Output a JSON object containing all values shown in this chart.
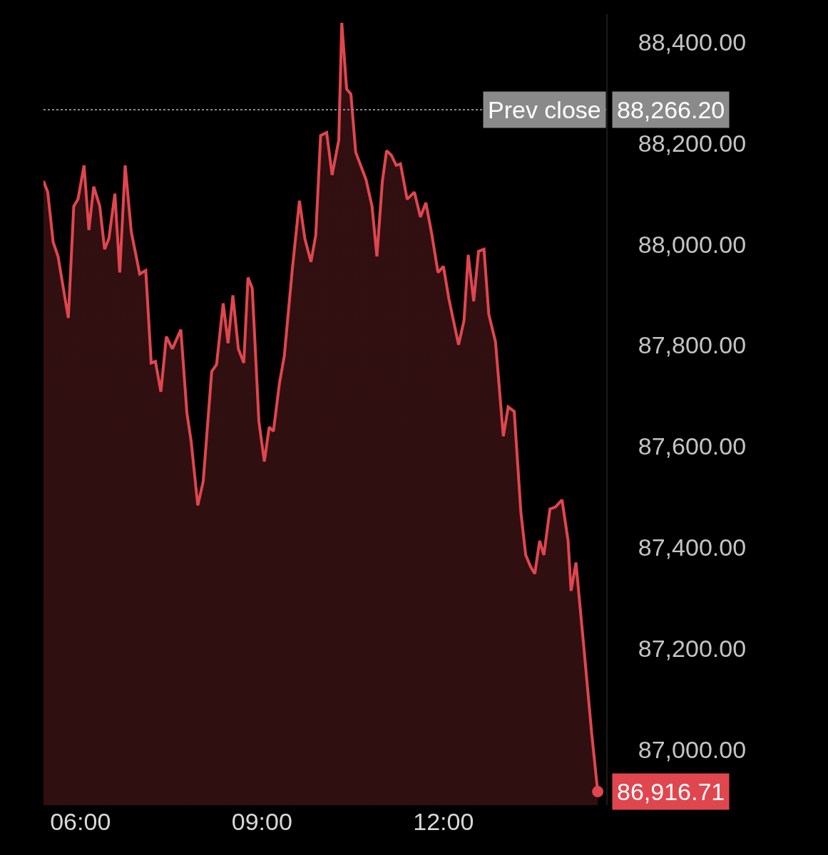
{
  "chart_data": {
    "type": "area",
    "x": [
      5.39,
      5.46,
      5.55,
      5.63,
      5.8,
      5.89,
      5.96,
      6.06,
      6.14,
      6.22,
      6.32,
      6.4,
      6.47,
      6.57,
      6.65,
      6.74,
      6.84,
      6.98,
      7.08,
      7.17,
      7.24,
      7.33,
      7.42,
      7.52,
      7.66,
      7.76,
      7.83,
      7.94,
      8.03,
      8.17,
      8.25,
      8.36,
      8.44,
      8.52,
      8.61,
      8.7,
      8.77,
      8.84,
      8.95,
      9.04,
      9.12,
      9.19,
      9.29,
      9.37,
      9.5,
      9.62,
      9.71,
      9.81,
      9.89,
      9.97,
      10.07,
      10.16,
      10.27,
      10.32,
      10.4,
      10.47,
      10.55,
      10.72,
      10.82,
      10.9,
      10.99,
      11.06,
      11.14,
      11.22,
      11.29,
      11.4,
      11.52,
      11.62,
      11.71,
      11.81,
      11.91,
      12.0,
      12.09,
      12.25,
      12.34,
      12.41,
      12.5,
      12.58,
      12.67,
      12.75,
      12.86,
      12.99,
      13.07,
      13.17,
      13.28,
      13.36,
      13.44,
      13.51,
      13.59,
      13.66,
      13.76,
      13.85,
      13.96,
      14.06,
      14.11,
      14.19,
      14.31,
      14.45,
      14.55
    ],
    "series": [
      {
        "color": "#e0464e",
        "values": [
          88125,
          88103,
          88004,
          87976,
          87854,
          88075,
          88089,
          88156,
          88028,
          88114,
          88075,
          87990,
          88011,
          88100,
          87944,
          88156,
          88025,
          87941,
          87948,
          87765,
          87768,
          87708,
          87817,
          87793,
          87831,
          87666,
          87610,
          87483,
          87531,
          87748,
          87762,
          87883,
          87804,
          87899,
          87793,
          87765,
          87934,
          87913,
          87649,
          87570,
          87638,
          87630,
          87725,
          87779,
          87948,
          88086,
          88011,
          87965,
          88018,
          88215,
          88221,
          88137,
          88206,
          88438,
          88307,
          88297,
          88182,
          88128,
          88075,
          87976,
          88124,
          88185,
          88176,
          88156,
          88159,
          88089,
          88103,
          88054,
          88082,
          88018,
          87944,
          87956,
          87892,
          87801,
          87849,
          87979,
          87887,
          87986,
          87990,
          87861,
          87807,
          87620,
          87678,
          87669,
          87469,
          87385,
          87362,
          87348,
          87413,
          87385,
          87476,
          87480,
          87494,
          87413,
          87314,
          87370,
          87216,
          87032,
          86916.71
        ]
      }
    ],
    "xlim": [
      5.39,
      14.69
    ],
    "ylim": [
      86890,
      88455
    ],
    "xticks": [
      {
        "value": 6,
        "label": "06:00"
      },
      {
        "value": 9,
        "label": "09:00"
      },
      {
        "value": 12,
        "label": "12:00"
      }
    ],
    "yticks": [
      {
        "value": 87000,
        "label": "87,000.00"
      },
      {
        "value": 87200,
        "label": "87,200.00"
      },
      {
        "value": 87400,
        "label": "87,400.00"
      },
      {
        "value": 87600,
        "label": "87,600.00"
      },
      {
        "value": 87800,
        "label": "87,800.00"
      },
      {
        "value": 88000,
        "label": "88,000.00"
      },
      {
        "value": 88200,
        "label": "88,200.00"
      },
      {
        "value": 88400,
        "label": "88,400.00"
      }
    ],
    "ref_lines": [
      {
        "axis": "y",
        "value": 88266.2,
        "label": "Prev close",
        "color": "#8a8a8a",
        "line_style": "dotted"
      }
    ],
    "annotations": [
      "88,266.20",
      {
        "text": "86,916.71",
        "x": 14.55,
        "y": 86916.71
      }
    ],
    "grid": false
  }
}
